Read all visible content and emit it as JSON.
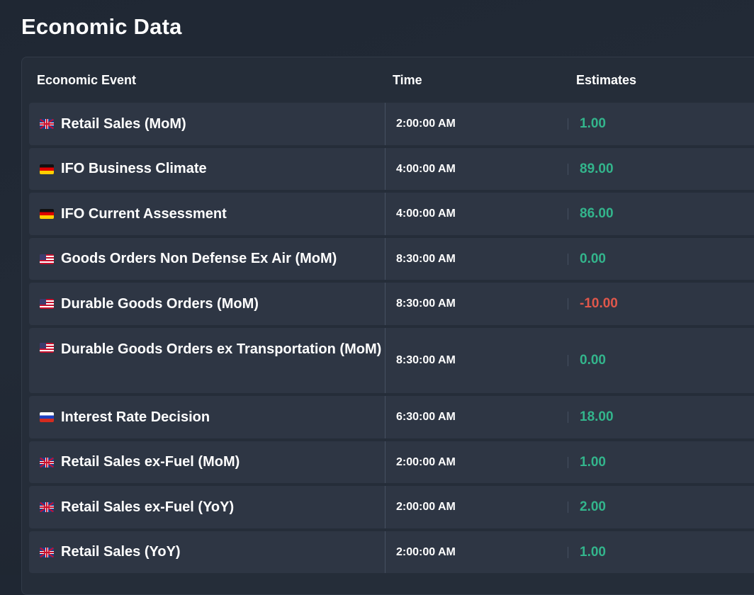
{
  "page": {
    "title": "Economic Data"
  },
  "table": {
    "headers": {
      "event": "Economic Event",
      "time": "Time",
      "estimates": "Estimates"
    },
    "rows": [
      {
        "flag": "uk-flag-icon",
        "event": "Retail Sales (MoM)",
        "time": "2:00:00 AM",
        "estimate": "1.00",
        "sign": "positive"
      },
      {
        "flag": "de-flag-icon",
        "event": "IFO Business Climate",
        "time": "4:00:00 AM",
        "estimate": "89.00",
        "sign": "positive"
      },
      {
        "flag": "de-flag-icon",
        "event": "IFO Current Assessment",
        "time": "4:00:00 AM",
        "estimate": "86.00",
        "sign": "positive"
      },
      {
        "flag": "us-flag-icon",
        "event": "Goods Orders Non Defense Ex Air (MoM)",
        "time": "8:30:00 AM",
        "estimate": "0.00",
        "sign": "positive"
      },
      {
        "flag": "us-flag-icon",
        "event": "Durable Goods Orders (MoM)",
        "time": "8:30:00 AM",
        "estimate": "-10.00",
        "sign": "negative"
      },
      {
        "flag": "us-flag-icon",
        "event": "Durable Goods Orders ex Transportation (MoM)",
        "time": "8:30:00 AM",
        "estimate": "0.00",
        "sign": "positive"
      },
      {
        "flag": "ru-flag-icon",
        "event": "Interest Rate Decision",
        "time": "6:30:00 AM",
        "estimate": "18.00",
        "sign": "positive"
      },
      {
        "flag": "uk-flag-icon",
        "event": "Retail Sales ex-Fuel (MoM)",
        "time": "2:00:00 AM",
        "estimate": "1.00",
        "sign": "positive"
      },
      {
        "flag": "uk-flag-icon",
        "event": "Retail Sales ex-Fuel (YoY)",
        "time": "2:00:00 AM",
        "estimate": "2.00",
        "sign": "positive"
      },
      {
        "flag": "uk-flag-icon",
        "event": "Retail Sales (YoY)",
        "time": "2:00:00 AM",
        "estimate": "1.00",
        "sign": "positive"
      }
    ]
  },
  "colors": {
    "positive": "#33b58c",
    "negative": "#e0574b",
    "background": "#222a36",
    "row": "#2e3644"
  }
}
